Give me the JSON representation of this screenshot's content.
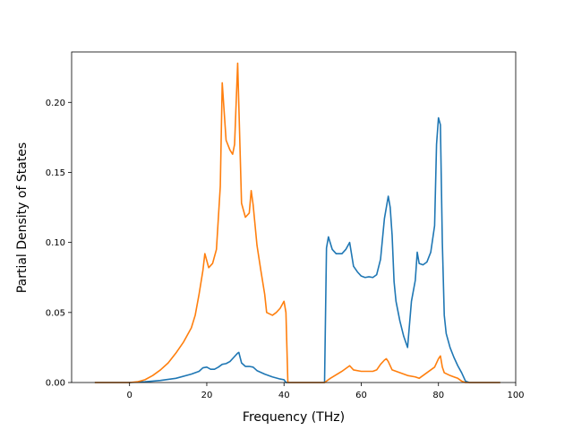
{
  "chart_data": {
    "type": "line",
    "title": "",
    "xlabel": "Frequency (THz)",
    "ylabel": "Partial Density of States",
    "xlim": [
      -15,
      100
    ],
    "ylim": [
      0,
      0.236
    ],
    "xticks": [
      0,
      20,
      40,
      60,
      80,
      100
    ],
    "yticks": [
      0.0,
      0.05,
      0.1,
      0.15,
      0.2
    ],
    "ytick_labels": [
      "0.00",
      "0.05",
      "0.10",
      "0.15",
      "0.20"
    ],
    "grid": false,
    "legend": "none",
    "series": [
      {
        "color": "#1f77b4",
        "points": [
          [
            -9,
            0
          ],
          [
            0,
            0
          ],
          [
            4,
            0.0005
          ],
          [
            8,
            0.0015
          ],
          [
            12,
            0.003
          ],
          [
            16,
            0.006
          ],
          [
            18,
            0.008
          ],
          [
            19,
            0.0105
          ],
          [
            20,
            0.011
          ],
          [
            21,
            0.0095
          ],
          [
            22,
            0.0095
          ],
          [
            23,
            0.011
          ],
          [
            24,
            0.013
          ],
          [
            25,
            0.0135
          ],
          [
            26,
            0.015
          ],
          [
            27,
            0.018
          ],
          [
            28,
            0.021
          ],
          [
            28.3,
            0.0215
          ],
          [
            29,
            0.014
          ],
          [
            30,
            0.0115
          ],
          [
            31,
            0.0115
          ],
          [
            32,
            0.011
          ],
          [
            33,
            0.0085
          ],
          [
            35,
            0.006
          ],
          [
            37,
            0.004
          ],
          [
            39,
            0.0025
          ],
          [
            40,
            0.002
          ],
          [
            40.5,
            0
          ],
          [
            50.5,
            0
          ],
          [
            51,
            0.096
          ],
          [
            51.5,
            0.104
          ],
          [
            52.5,
            0.095
          ],
          [
            53.5,
            0.092
          ],
          [
            55,
            0.092
          ],
          [
            56,
            0.095
          ],
          [
            57,
            0.1
          ],
          [
            58,
            0.083
          ],
          [
            59,
            0.079
          ],
          [
            60,
            0.076
          ],
          [
            61,
            0.075
          ],
          [
            62,
            0.0755
          ],
          [
            63,
            0.075
          ],
          [
            64,
            0.077
          ],
          [
            65,
            0.088
          ],
          [
            66,
            0.117
          ],
          [
            67,
            0.133
          ],
          [
            67.5,
            0.125
          ],
          [
            68,
            0.105
          ],
          [
            68.5,
            0.072
          ],
          [
            69,
            0.058
          ],
          [
            70,
            0.044
          ],
          [
            71,
            0.033
          ],
          [
            72,
            0.025
          ],
          [
            73,
            0.058
          ],
          [
            74,
            0.073
          ],
          [
            74.5,
            0.093
          ],
          [
            75,
            0.085
          ],
          [
            76,
            0.084
          ],
          [
            77,
            0.086
          ],
          [
            78,
            0.093
          ],
          [
            79,
            0.112
          ],
          [
            79.5,
            0.17
          ],
          [
            80,
            0.189
          ],
          [
            80.5,
            0.184
          ],
          [
            81,
            0.1
          ],
          [
            81.5,
            0.048
          ],
          [
            82,
            0.035
          ],
          [
            83,
            0.025
          ],
          [
            84,
            0.018
          ],
          [
            85,
            0.012
          ],
          [
            86,
            0.007
          ],
          [
            87,
            0.001
          ],
          [
            88,
            0
          ],
          [
            96,
            0
          ]
        ]
      },
      {
        "color": "#ff7f0e",
        "points": [
          [
            -9,
            0
          ],
          [
            0,
            0
          ],
          [
            2,
            0.0005
          ],
          [
            4,
            0.002
          ],
          [
            6,
            0.005
          ],
          [
            8,
            0.009
          ],
          [
            10,
            0.014
          ],
          [
            12,
            0.021
          ],
          [
            14,
            0.029
          ],
          [
            16,
            0.039
          ],
          [
            17,
            0.048
          ],
          [
            18,
            0.063
          ],
          [
            19,
            0.08
          ],
          [
            19.5,
            0.092
          ],
          [
            20.5,
            0.082
          ],
          [
            21.5,
            0.085
          ],
          [
            22.5,
            0.095
          ],
          [
            23.5,
            0.14
          ],
          [
            24,
            0.214
          ],
          [
            25,
            0.173
          ],
          [
            26,
            0.166
          ],
          [
            26.7,
            0.163
          ],
          [
            27.2,
            0.17
          ],
          [
            28,
            0.228
          ],
          [
            29,
            0.128
          ],
          [
            30,
            0.118
          ],
          [
            31,
            0.121
          ],
          [
            31.5,
            0.137
          ],
          [
            32,
            0.127
          ],
          [
            33,
            0.098
          ],
          [
            34,
            0.08
          ],
          [
            35,
            0.063
          ],
          [
            35.5,
            0.05
          ],
          [
            37,
            0.048
          ],
          [
            38,
            0.05
          ],
          [
            39,
            0.053
          ],
          [
            40,
            0.058
          ],
          [
            40.5,
            0.05
          ],
          [
            41,
            0
          ],
          [
            50.5,
            0
          ],
          [
            52,
            0.003
          ],
          [
            55,
            0.008
          ],
          [
            57,
            0.012
          ],
          [
            58,
            0.009
          ],
          [
            60,
            0.008
          ],
          [
            63,
            0.008
          ],
          [
            64,
            0.009
          ],
          [
            65,
            0.013
          ],
          [
            66,
            0.016
          ],
          [
            66.5,
            0.017
          ],
          [
            67,
            0.015
          ],
          [
            68,
            0.009
          ],
          [
            70,
            0.007
          ],
          [
            72,
            0.005
          ],
          [
            74,
            0.004
          ],
          [
            75,
            0.003
          ],
          [
            77,
            0.007
          ],
          [
            79,
            0.011
          ],
          [
            80,
            0.017
          ],
          [
            80.5,
            0.019
          ],
          [
            81,
            0.011
          ],
          [
            81.5,
            0.007
          ],
          [
            83,
            0.005
          ],
          [
            85,
            0.003
          ],
          [
            86,
            0.001
          ],
          [
            87,
            0
          ],
          [
            96,
            0
          ]
        ]
      }
    ]
  }
}
